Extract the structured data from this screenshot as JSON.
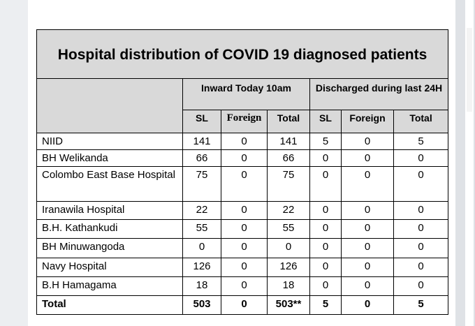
{
  "table": {
    "title": "Hospital distribution of COVID 19 diagnosed patients",
    "group_inward": "Inward Today 10am",
    "group_discharged": "Discharged during last 24H",
    "sub_headers": [
      "SL",
      "Foreign",
      "Total",
      "SL",
      "Foreign",
      "Total"
    ],
    "rows": [
      {
        "name": "NIID",
        "values": [
          "141",
          "0",
          "141",
          "5",
          "0",
          "5"
        ]
      },
      {
        "name": "BH Welikanda",
        "values": [
          "66",
          "0",
          "66",
          "0",
          "0",
          "0"
        ]
      },
      {
        "name": "Colombo East Base Hospital",
        "values": [
          "75",
          "0",
          "75",
          "0",
          "0",
          "0"
        ]
      },
      {
        "name": "Iranawila Hospital",
        "values": [
          "22",
          "0",
          "22",
          "0",
          "0",
          "0"
        ]
      },
      {
        "name": "B.H. Kathankudi",
        "values": [
          "55",
          "0",
          "55",
          "0",
          "0",
          "0"
        ]
      },
      {
        "name": "BH Minuwangoda",
        "values": [
          "0",
          "0",
          "0",
          "0",
          "0",
          "0"
        ]
      },
      {
        "name": "Navy Hospital",
        "values": [
          "126",
          "0",
          "126",
          "0",
          "0",
          "0"
        ]
      },
      {
        "name": "B.H Hamagama",
        "values": [
          "18",
          "0",
          "18",
          "0",
          "0",
          "0"
        ]
      }
    ],
    "total": {
      "name": "Total",
      "values": [
        "503",
        "0",
        "503**",
        "5",
        "0",
        "5"
      ]
    }
  }
}
